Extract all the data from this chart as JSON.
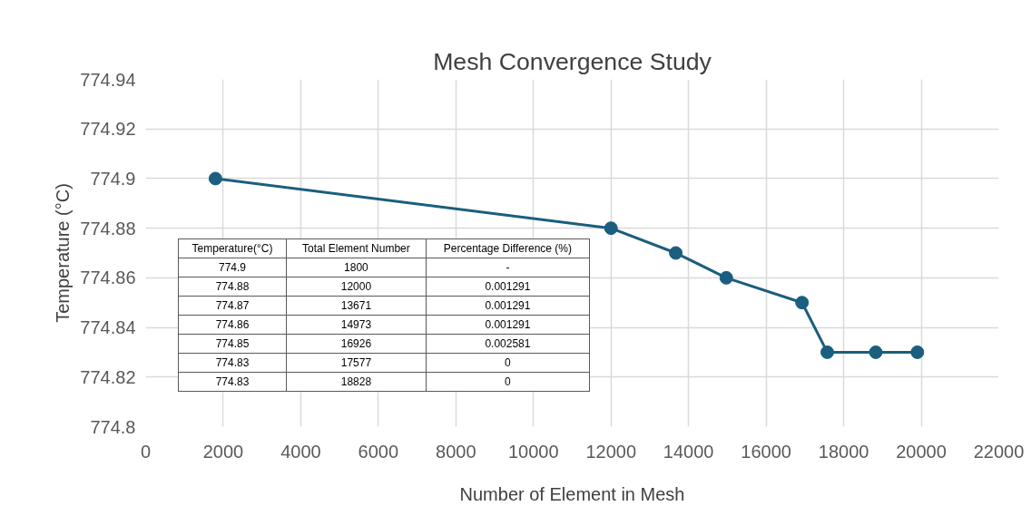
{
  "chart_data": {
    "type": "line",
    "title": "Mesh Convergence Study",
    "xlabel": "Number of Element in Mesh",
    "ylabel": "Temperature (°C)",
    "x": [
      1800,
      12000,
      13671,
      14973,
      16926,
      17577,
      18828,
      19900
    ],
    "series": [
      {
        "color": "#1b5e7f",
        "values": [
          774.9,
          774.88,
          774.87,
          774.86,
          774.85,
          774.83,
          774.83,
          774.83
        ]
      }
    ],
    "xlim": [
      0,
      22000
    ],
    "xticks": [
      0,
      2000,
      4000,
      6000,
      8000,
      10000,
      12000,
      14000,
      16000,
      18000,
      20000,
      22000
    ],
    "ylim": [
      774.8,
      774.94
    ],
    "yticks": [
      774.8,
      774.82,
      774.84,
      774.86,
      774.88,
      774.9,
      774.92,
      774.94
    ],
    "grid": true,
    "marker": "circle",
    "line_style": "solid",
    "annotations": [
      "Temperature(°C)",
      "Total Element Number",
      "Percentage Difference (%)",
      "774.9",
      "1800",
      "-",
      "774.88",
      "12000",
      "0.001291",
      "774.87",
      "13671",
      "0.001291",
      "774.86",
      "14973",
      "0.001291",
      "774.85",
      "16926",
      "0.002581",
      "774.83",
      "17577",
      "0",
      "774.83",
      "18828",
      "0"
    ]
  }
}
